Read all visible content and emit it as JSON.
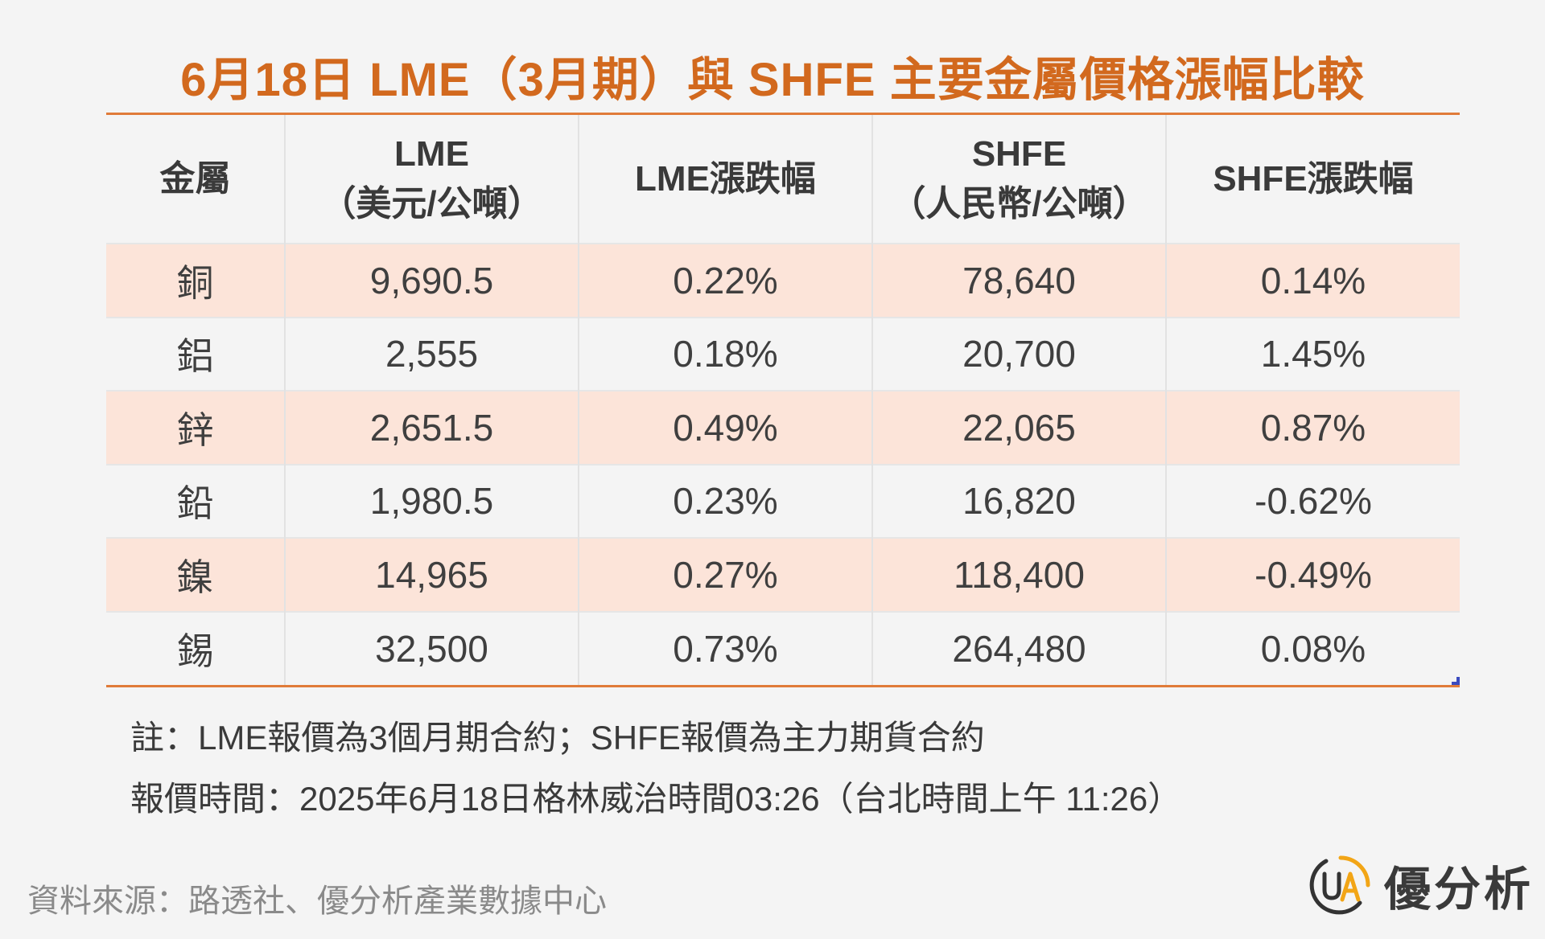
{
  "title": "6月18日 LME（3月期）與 SHFE 主要金屬價格漲幅比較",
  "table": {
    "headers": [
      {
        "line1": "金屬",
        "line2": ""
      },
      {
        "line1": "LME",
        "line2": "（美元/公噸）"
      },
      {
        "line1": "LME漲跌幅",
        "line2": ""
      },
      {
        "line1": "SHFE",
        "line2": "（人民幣/公噸）"
      },
      {
        "line1": "SHFE漲跌幅",
        "line2": ""
      }
    ],
    "rows": [
      {
        "metal": "銅",
        "lme": "9,690.5",
        "lme_chg": "0.22%",
        "shfe": "78,640",
        "shfe_chg": "0.14%"
      },
      {
        "metal": "鋁",
        "lme": "2,555",
        "lme_chg": "0.18%",
        "shfe": "20,700",
        "shfe_chg": "1.45%"
      },
      {
        "metal": "鋅",
        "lme": "2,651.5",
        "lme_chg": "0.49%",
        "shfe": "22,065",
        "shfe_chg": "0.87%"
      },
      {
        "metal": "鉛",
        "lme": "1,980.5",
        "lme_chg": "0.23%",
        "shfe": "16,820",
        "shfe_chg": "-0.62%"
      },
      {
        "metal": "鎳",
        "lme": "14,965",
        "lme_chg": "0.27%",
        "shfe": "118,400",
        "shfe_chg": "-0.49%"
      },
      {
        "metal": "錫",
        "lme": "32,500",
        "lme_chg": "0.73%",
        "shfe": "264,480",
        "shfe_chg": "0.08%"
      }
    ]
  },
  "notes": {
    "note1": "註：LME報價為3個月期合約；SHFE報價為主力期貨合約",
    "note2": "報價時間：2025年6月18日格林威治時間03:26（台北時間上午 11:26）"
  },
  "source": "資料來源：路透社、優分析產業數據中心",
  "logo": {
    "text": "優分析",
    "icon": "ua-logo-icon",
    "icon_letters": "UA",
    "color_dark": "#333333",
    "color_accent": "#f2a516"
  },
  "colors": {
    "title": "#d2691e",
    "rule": "#e07b39",
    "row_shade": "#fce4d9",
    "background": "#f4f4f4"
  }
}
